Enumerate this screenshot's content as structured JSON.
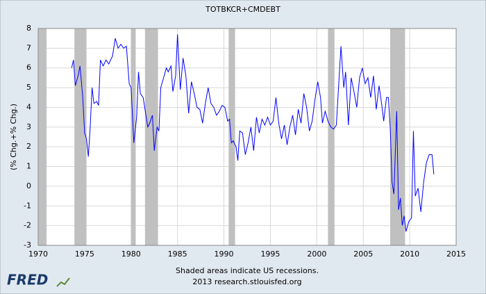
{
  "chart_data": {
    "type": "line",
    "title": "TOTBKCR+CMDEBT",
    "y_label": "(% Chg.+% Chg.)",
    "note": "Shaded areas indicate US recessions.",
    "source": "2013 research.stlouisfed.org",
    "logo": "FRED",
    "xlim": [
      1970,
      2015
    ],
    "xticks": [
      1970,
      1975,
      1980,
      1985,
      1990,
      1995,
      2000,
      2005,
      2010,
      2015
    ],
    "ylim": [
      -3,
      8
    ],
    "yticks": [
      -3,
      -2,
      -1,
      0,
      1,
      2,
      3,
      4,
      5,
      6,
      7,
      8
    ],
    "grid": true,
    "recession_color": "#c0c0c0",
    "recessions": [
      [
        1969.9,
        1970.9
      ],
      [
        1973.9,
        1975.2
      ],
      [
        1980.0,
        1980.5
      ],
      [
        1981.5,
        1982.9
      ],
      [
        1990.5,
        1991.2
      ],
      [
        2001.2,
        2001.9
      ],
      [
        2007.9,
        2009.5
      ]
    ],
    "series": [
      {
        "color": "#0000ff",
        "x": [
          1973.6,
          1973.8,
          1974.0,
          1974.3,
          1974.5,
          1974.8,
          1975.0,
          1975.2,
          1975.4,
          1975.6,
          1975.8,
          1976.0,
          1976.3,
          1976.5,
          1976.7,
          1977.0,
          1977.3,
          1977.6,
          1978.0,
          1978.3,
          1978.6,
          1978.9,
          1979.2,
          1979.5,
          1979.8,
          1980.0,
          1980.3,
          1980.6,
          1980.8,
          1981.0,
          1981.3,
          1981.6,
          1981.8,
          1982.0,
          1982.3,
          1982.5,
          1982.8,
          1983.0,
          1983.2,
          1983.5,
          1983.8,
          1984.0,
          1984.3,
          1984.5,
          1984.8,
          1985.0,
          1985.3,
          1985.6,
          1985.9,
          1986.2,
          1986.5,
          1986.8,
          1987.1,
          1987.4,
          1987.7,
          1988.0,
          1988.3,
          1988.6,
          1988.9,
          1989.2,
          1989.5,
          1989.8,
          1990.1,
          1990.4,
          1990.6,
          1990.8,
          1991.0,
          1991.3,
          1991.5,
          1991.7,
          1992.0,
          1992.3,
          1992.6,
          1992.9,
          1993.2,
          1993.5,
          1993.8,
          1994.1,
          1994.4,
          1994.7,
          1995.0,
          1995.3,
          1995.6,
          1995.9,
          1996.2,
          1996.5,
          1996.8,
          1997.1,
          1997.4,
          1997.7,
          1998.0,
          1998.3,
          1998.6,
          1998.9,
          1999.2,
          1999.5,
          1999.8,
          2000.1,
          2000.4,
          2000.6,
          2000.9,
          2001.2,
          2001.5,
          2001.8,
          2002.1,
          2002.4,
          2002.6,
          2002.9,
          2003.1,
          2003.4,
          2003.7,
          2004.0,
          2004.3,
          2004.6,
          2004.9,
          2005.2,
          2005.5,
          2005.8,
          2006.1,
          2006.4,
          2006.7,
          2007.0,
          2007.2,
          2007.5,
          2007.7,
          2007.9,
          2008.1,
          2008.3,
          2008.6,
          2008.8,
          2009.0,
          2009.2,
          2009.4,
          2009.6,
          2009.9,
          2010.2,
          2010.4,
          2010.6,
          2010.9,
          2011.2,
          2011.5,
          2011.8,
          2012.1,
          2012.4,
          2012.6
        ],
        "values": [
          6.0,
          6.4,
          5.1,
          5.6,
          6.1,
          4.5,
          2.7,
          2.4,
          1.5,
          3.0,
          5.0,
          4.2,
          4.3,
          4.1,
          6.4,
          6.1,
          6.4,
          6.2,
          6.6,
          7.5,
          7.0,
          7.2,
          7.0,
          7.1,
          5.2,
          5.0,
          2.2,
          3.5,
          5.8,
          4.7,
          4.5,
          3.6,
          3.0,
          3.2,
          3.6,
          1.8,
          3.0,
          2.8,
          5.0,
          5.5,
          6.0,
          5.8,
          6.1,
          4.8,
          5.6,
          7.7,
          4.9,
          6.5,
          5.6,
          3.7,
          5.3,
          4.7,
          4.0,
          3.9,
          3.2,
          4.2,
          5.0,
          4.2,
          4.0,
          3.6,
          3.8,
          4.1,
          4.0,
          3.3,
          3.4,
          2.2,
          2.3,
          2.0,
          1.3,
          2.8,
          2.7,
          1.6,
          2.2,
          3.0,
          1.8,
          3.5,
          2.7,
          3.4,
          3.1,
          3.5,
          3.1,
          3.3,
          4.5,
          3.2,
          2.4,
          3.1,
          2.1,
          3.0,
          3.6,
          2.6,
          3.9,
          3.2,
          4.7,
          4.0,
          2.8,
          3.3,
          4.4,
          5.3,
          4.5,
          3.2,
          3.8,
          3.3,
          3.0,
          2.9,
          3.1,
          5.5,
          7.1,
          5.0,
          5.8,
          3.1,
          5.5,
          4.8,
          4.0,
          5.5,
          6.0,
          5.2,
          5.5,
          4.5,
          5.6,
          3.9,
          5.1,
          4.1,
          3.3,
          4.5,
          4.5,
          3.0,
          0.2,
          -0.4,
          3.8,
          -1.2,
          -0.6,
          -2.0,
          -1.5,
          -2.3,
          -1.8,
          -1.6,
          2.8,
          -0.5,
          -0.1,
          -1.3,
          0.2,
          1.2,
          1.6,
          1.6,
          0.6
        ]
      }
    ]
  }
}
